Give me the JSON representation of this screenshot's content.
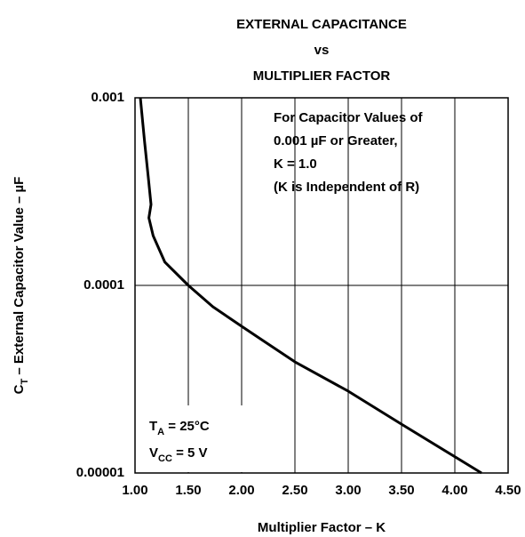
{
  "chart_data": {
    "type": "line",
    "title": [
      "EXTERNAL CAPACITANCE",
      "vs",
      "MULTIPLIER FACTOR"
    ],
    "x_label": "Multiplier Factor – K",
    "y_label": [
      {
        "text": "C"
      },
      {
        "sub": "T"
      },
      {
        "text": " – External Capacitor Value – µF"
      }
    ],
    "annotations": [
      "For Capacitor Values of",
      "0.001 µF or Greater,",
      "K = 1.0",
      "(K is Independent of R)"
    ],
    "conditions": [
      [
        {
          "text": "T"
        },
        {
          "sub": "A"
        },
        {
          "text": " = 25°C"
        }
      ],
      [
        {
          "text": "V"
        },
        {
          "sub": "CC"
        },
        {
          "text": " = 5 V"
        }
      ]
    ],
    "x": [
      1.05,
      1.09,
      1.125,
      1.15,
      1.13,
      1.17,
      1.28,
      1.5,
      1.73,
      2.0,
      2.5,
      3.0,
      3.5,
      4.25
    ],
    "series": [
      {
        "color": "#000000",
        "values": [
          0.001,
          0.00058,
          0.000374,
          0.00027,
          0.000229,
          0.000184,
          0.000133,
          0.0001,
          7.7e-05,
          6.05e-05,
          3.91e-05,
          2.73e-05,
          1.82e-05,
          1e-05
        ]
      }
    ],
    "xlim": [
      1.0,
      4.5
    ],
    "xticks": [
      {
        "value": 1.0,
        "label": "1.00"
      },
      {
        "value": 1.5,
        "label": "1.50"
      },
      {
        "value": 2.0,
        "label": "2.00"
      },
      {
        "value": 2.5,
        "label": "2.50"
      },
      {
        "value": 3.0,
        "label": "3.00"
      },
      {
        "value": 3.5,
        "label": "3.50"
      },
      {
        "value": 4.0,
        "label": "4.00"
      },
      {
        "value": 4.5,
        "label": "4.50"
      }
    ],
    "ylim": [
      1e-05,
      0.001
    ],
    "yticks": [
      0.001,
      0.0001,
      1e-05
    ],
    "ylog": true,
    "grid": true
  }
}
